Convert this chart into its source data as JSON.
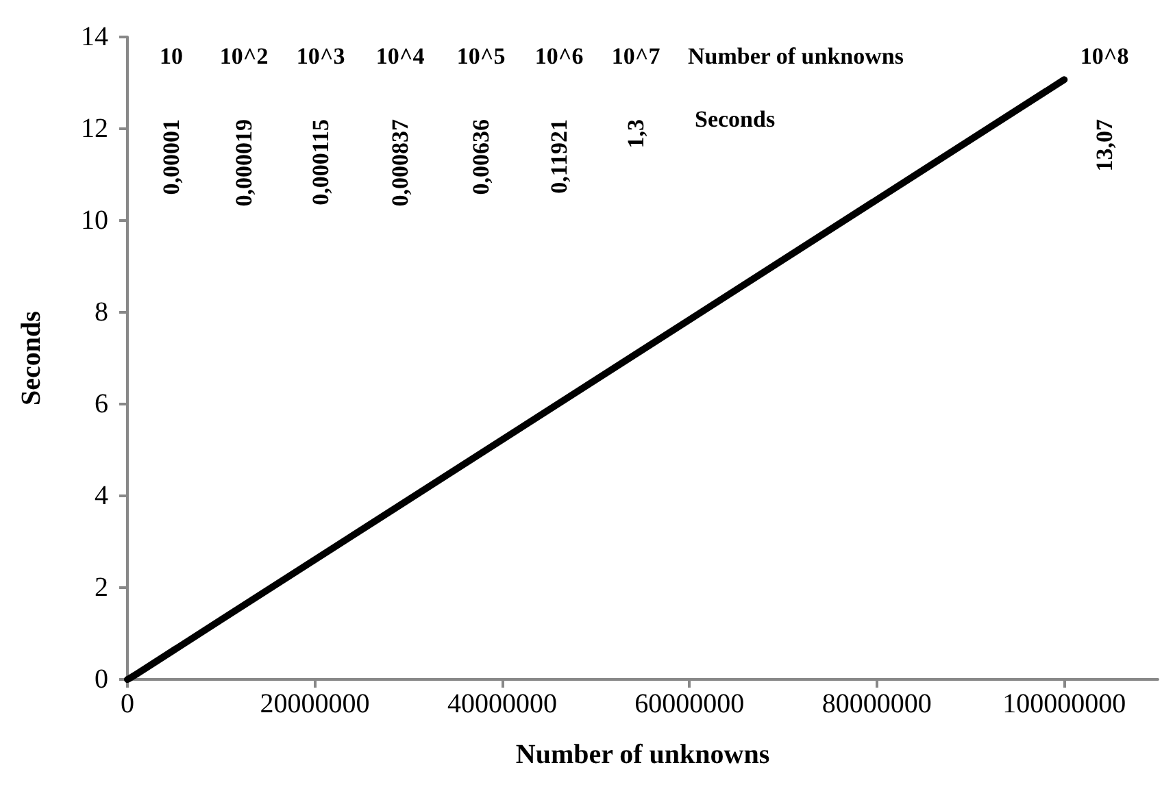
{
  "chart_data": {
    "type": "line",
    "xlabel": "Number of unknowns",
    "ylabel": "Seconds",
    "x": [
      10,
      100,
      1000,
      10000,
      100000,
      1000000,
      10000000,
      100000000
    ],
    "series": [
      {
        "color": "#000000",
        "values": [
          1e-05,
          1.9e-05,
          0.000115,
          0.000837,
          0.00636,
          0.11921,
          1.3,
          13.07
        ]
      }
    ],
    "xlim": [
      0,
      110000000
    ],
    "xticks": [
      0,
      20000000,
      40000000,
      60000000,
      80000000,
      100000000
    ],
    "ylim": [
      0,
      14
    ],
    "yticks": [
      0,
      2,
      4,
      6,
      8,
      10,
      12,
      14
    ],
    "grid": false,
    "marker": "none",
    "line_style": "solid",
    "annotations": [
      "10",
      "10^2",
      "10^3",
      "10^4",
      "10^5",
      "10^6",
      "10^7",
      "Number of unknowns",
      "10^8",
      "0,00001",
      "0,000019",
      "0,000115",
      "0,000837",
      "0,00636",
      "0,11921",
      "1,3",
      "Seconds",
      "13,07"
    ]
  }
}
